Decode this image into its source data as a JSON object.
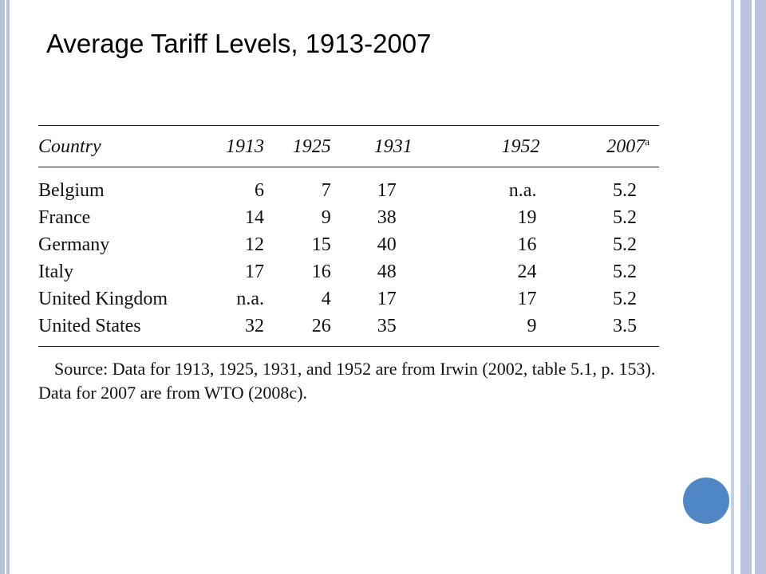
{
  "title": "Average Tariff Levels, 1913-2007",
  "table": {
    "headers": {
      "country": "Country",
      "y1913": "1913",
      "y1925": "1925",
      "y1931": "1931",
      "y1952": "1952",
      "y2007": "2007",
      "y2007_note": "a"
    },
    "rows": [
      {
        "country": "Belgium",
        "y1913": "6",
        "y1925": "7",
        "y1931": "17",
        "y1952": "n.a.",
        "y2007": "5.2"
      },
      {
        "country": "France",
        "y1913": "14",
        "y1925": "9",
        "y1931": "38",
        "y1952": "19",
        "y2007": "5.2"
      },
      {
        "country": "Germany",
        "y1913": "12",
        "y1925": "15",
        "y1931": "40",
        "y1952": "16",
        "y2007": "5.2"
      },
      {
        "country": "Italy",
        "y1913": "17",
        "y1925": "16",
        "y1931": "48",
        "y1952": "24",
        "y2007": "5.2"
      },
      {
        "country": "United Kingdom",
        "y1913": "n.a.",
        "y1925": "4",
        "y1931": "17",
        "y1952": "17",
        "y2007": "5.2"
      },
      {
        "country": "United States",
        "y1913": "32",
        "y1925": "26",
        "y1931": "35",
        "y1952": "9",
        "y2007": "3.5"
      }
    ]
  },
  "source": "Source: Data for 1913, 1925, 1931, and 1952 are from Irwin (2002, table 5.1, p. 153). Data for 2007 are from WTO (2008c).",
  "colors": {
    "border_accent": "#b8c4dc",
    "circle_accent": "#4f86c6"
  }
}
